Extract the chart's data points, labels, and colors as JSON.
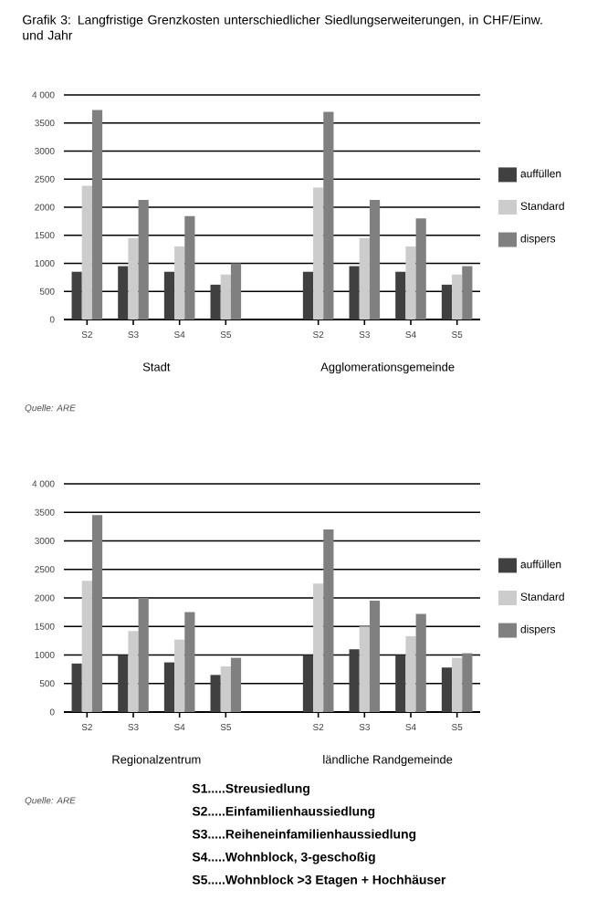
{
  "chart_data": [
    {
      "type": "bar",
      "title": "Grafik 3: Langfristige Grenzkosten unterschiedlicher Siedlungserweiterungen, in CHF/Einw. und Jahr",
      "categories": [
        "S2",
        "S3",
        "S4",
        "S5",
        null,
        "S2",
        "S3",
        "S4",
        "S5"
      ],
      "series": [
        {
          "name": "auffüllen",
          "color": "#404040",
          "values": [
            850,
            950,
            850,
            620,
            null,
            850,
            950,
            850,
            620
          ]
        },
        {
          "name": "Standard",
          "color": "#cccccc",
          "values": [
            2380,
            1450,
            1300,
            800,
            null,
            2350,
            1450,
            1300,
            800
          ]
        },
        {
          "name": "dispers",
          "color": "#808080",
          "values": [
            3730,
            2130,
            1840,
            1000,
            null,
            3700,
            2130,
            1800,
            950
          ]
        }
      ],
      "ylim": [
        0,
        4000
      ],
      "yticks": [
        0,
        500,
        1000,
        1500,
        2000,
        2500,
        3000,
        3500,
        {
          "value": 4000,
          "label": "4 000"
        }
      ],
      "grid": "y",
      "legend": "right",
      "annotations": [
        "Stadt",
        "Agglomerationsgemeinde",
        "Quelle: ARE"
      ]
    },
    {
      "type": "bar",
      "categories": [
        "S2",
        "S3",
        "S4",
        "S5",
        null,
        "S2",
        "S3",
        "S4",
        "S5"
      ],
      "series": [
        {
          "name": "auffüllen",
          "color": "#404040",
          "values": [
            850,
            1000,
            870,
            650,
            null,
            1000,
            1100,
            1000,
            780
          ]
        },
        {
          "name": "Standard",
          "color": "#cccccc",
          "values": [
            2300,
            1420,
            1270,
            800,
            null,
            2250,
            1500,
            1330,
            950
          ]
        },
        {
          "name": "dispers",
          "color": "#808080",
          "values": [
            3450,
            2000,
            1750,
            950,
            null,
            3200,
            1950,
            1720,
            1030
          ]
        }
      ],
      "ylim": [
        0,
        4000
      ],
      "yticks": [
        0,
        500,
        1000,
        1500,
        2000,
        2500,
        3000,
        3500,
        {
          "value": 4000,
          "label": "4 000"
        }
      ],
      "grid": "y",
      "legend": "right",
      "annotations": [
        "Regionalzentrum",
        "ländliche Randgemeinde",
        "Quelle: ARE",
        "S1.....Streusiedlung",
        "S2.....Einfamilienhaussiedlung",
        "S3.....Reiheneinfamilienhaussiedlung",
        "S4.....Wohnblock, 3-geschoßig",
        "S5.....Wohnblock >3 Etagen + Hochhäuser"
      ]
    }
  ]
}
